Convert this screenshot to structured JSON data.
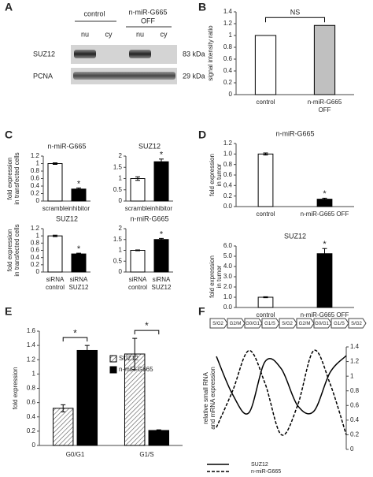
{
  "panel_labels": [
    "A",
    "B",
    "C",
    "D",
    "E",
    "F"
  ],
  "blot": {
    "group_labels": [
      "control",
      "n-miR-G665",
      "OFF"
    ],
    "lane_labels": [
      "nu",
      "cy",
      "nu",
      "cy"
    ],
    "rows": [
      {
        "protein": "SUZ12",
        "size": "83 kDa"
      },
      {
        "protein": "PCNA",
        "size": "29 kDa"
      }
    ]
  },
  "chart_data": [
    {
      "type": "bar",
      "ylabel": [
        "signal intensity ratio"
      ],
      "categories": [
        "control",
        "n-miR-G665 OFF"
      ],
      "values": [
        1.0,
        1.17
      ],
      "colors": [
        "#ffffff",
        "#c0c0c0"
      ],
      "ylim": [
        0,
        1.4
      ],
      "yticks": [
        0,
        0.2,
        0.4,
        0.6,
        0.8,
        1,
        1.2,
        1.4
      ],
      "annotation": "NS"
    },
    {
      "type": "bar",
      "title": "n-miR-G665",
      "ylabel": [
        "fold expression",
        "in transfected cells"
      ],
      "categories": [
        "scramble",
        "inhibitor"
      ],
      "values": [
        1.0,
        0.32
      ],
      "errors": [
        0.02,
        0.03
      ],
      "colors": [
        "#ffffff",
        "#000000"
      ],
      "ylim": [
        0,
        1.2
      ],
      "yticks": [
        0,
        0.2,
        0.4,
        0.6,
        0.8,
        1,
        1.2
      ],
      "annotation": "*"
    },
    {
      "type": "bar",
      "title": "SUZ12",
      "categories": [
        "scramble",
        "inhibitor"
      ],
      "values": [
        1.0,
        1.75
      ],
      "errors": [
        0.08,
        0.12
      ],
      "colors": [
        "#ffffff",
        "#000000"
      ],
      "ylim": [
        0,
        2
      ],
      "yticks": [
        0,
        0.5,
        1,
        1.5,
        2
      ],
      "annotation": "*"
    },
    {
      "type": "bar",
      "title": "SUZ12",
      "ylabel": [
        "fold expression",
        "in transfected cells"
      ],
      "categories": [
        "siRNA control",
        "siRNA SUZ12"
      ],
      "values": [
        1.0,
        0.5
      ],
      "errors": [
        0.02,
        0.02
      ],
      "colors": [
        "#ffffff",
        "#000000"
      ],
      "ylim": [
        0,
        1.2
      ],
      "yticks": [
        0,
        0.2,
        0.4,
        0.6,
        0.8,
        1,
        1.2
      ],
      "annotation": "*"
    },
    {
      "type": "bar",
      "title": "n-miR-G665",
      "categories": [
        "siRNA control",
        "siRNA SUZ12"
      ],
      "values": [
        1.0,
        1.5
      ],
      "errors": [
        0.02,
        0.05
      ],
      "colors": [
        "#ffffff",
        "#000000"
      ],
      "ylim": [
        0,
        2
      ],
      "yticks": [
        0,
        0.5,
        1,
        1.5,
        2
      ],
      "annotation": "*"
    },
    {
      "type": "bar",
      "title": "n-miR-G665",
      "ylabel": [
        "fold expression",
        "in tumor"
      ],
      "categories": [
        "control",
        "n-miR-G665   OFF"
      ],
      "values": [
        1.0,
        0.14
      ],
      "errors": [
        0.02,
        0.02
      ],
      "colors": [
        "#ffffff",
        "#000000"
      ],
      "ylim": [
        0,
        1.2
      ],
      "yticks": [
        {
          "value": 0,
          "label": "0.0"
        },
        0.2,
        0.4,
        0.6,
        0.8,
        {
          "value": 1,
          "label": "1.0"
        },
        1.2
      ],
      "annotation": "*"
    },
    {
      "type": "bar",
      "title": "SUZ12",
      "ylabel": [
        "fold expression",
        "in tumor"
      ],
      "categories": [
        "control",
        "n-miR-G665   OFF"
      ],
      "values": [
        1.0,
        5.25
      ],
      "errors": [
        0.05,
        0.5
      ],
      "colors": [
        "#ffffff",
        "#000000"
      ],
      "ylim": [
        0,
        6
      ],
      "yticks": [
        {
          "value": 0,
          "label": "0.0"
        },
        {
          "value": 1,
          "label": "1.0"
        },
        {
          "value": 2,
          "label": "2.0"
        },
        {
          "value": 3,
          "label": "3.0"
        },
        {
          "value": 4,
          "label": "4.0"
        },
        {
          "value": 5,
          "label": "5.0"
        },
        {
          "value": 6,
          "label": "6.0"
        }
      ],
      "annotation": "*"
    },
    {
      "type": "grouped-bar",
      "ylabel": [
        "fold expression"
      ],
      "categories": [
        "G0/G1",
        "G1/S"
      ],
      "series": [
        {
          "name": "SUZ12",
          "color": "#ffffff",
          "pattern": "hatch",
          "values": [
            0.52,
            1.28
          ],
          "errors": [
            0.05,
            0.22
          ]
        },
        {
          "name": "n-miR-G665",
          "color": "#000000",
          "values": [
            1.33,
            0.21
          ],
          "errors": [
            0.07,
            0.01
          ]
        }
      ],
      "ylim": [
        0,
        1.6
      ],
      "yticks": [
        0,
        0.2,
        0.4,
        0.6,
        0.8,
        1,
        1.2,
        1.4,
        1.6
      ],
      "annotations": [
        "*",
        "*"
      ]
    },
    {
      "type": "line",
      "ylabel": [
        "relative small RNA",
        "and mRNA expression"
      ],
      "phases": [
        "S/G2",
        "G2/M",
        "G0/G1",
        "G1/S",
        "S/G2",
        "G2/M",
        "G0/G1",
        "G1/S",
        "S/G2"
      ],
      "x": [
        0,
        1,
        2,
        3,
        4,
        5,
        6,
        7,
        8
      ],
      "xlim": [
        0,
        8
      ],
      "ylim": [
        0,
        1.4
      ],
      "yticks": [
        0,
        0.2,
        0.4,
        0.6,
        0.8,
        1,
        1.2,
        1.4
      ],
      "yaxis_side": "right",
      "series": [
        {
          "name": "SUZ12",
          "color": "#000000",
          "linestyle": "solid",
          "values": [
            1.27,
            0.75,
            0.5,
            1.2,
            1.1,
            0.6,
            0.52,
            1.05,
            1.28
          ]
        },
        {
          "name": "n-miR-G665",
          "color": "#000000",
          "linestyle": "dashed",
          "values": [
            0.3,
            0.8,
            1.35,
            0.9,
            0.2,
            0.6,
            1.35,
            0.9,
            0.2
          ]
        }
      ]
    }
  ]
}
